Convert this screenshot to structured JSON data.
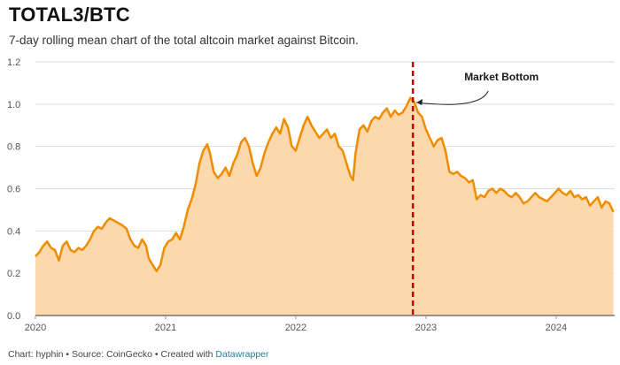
{
  "header": {
    "title": "TOTAL3/BTC",
    "subtitle": "7-day rolling mean chart of the total altcoin market against Bitcoin."
  },
  "footer": {
    "text": "Chart: hyphin • Source: CoinGecko • Created with ",
    "link": "Datawrapper"
  },
  "colors": {
    "line": "#f08c00",
    "area": "#fcd9ad",
    "marker": "#c00000",
    "grid": "#dddddd"
  },
  "chart_data": {
    "type": "area",
    "title": "TOTAL3/BTC",
    "xlabel": "",
    "ylabel": "",
    "xlim": [
      2020.0,
      2024.45
    ],
    "ylim": [
      0,
      1.2
    ],
    "y_ticks": [
      {
        "value": 0,
        "label": "0.0"
      },
      {
        "value": 0.2,
        "label": "0.2"
      },
      {
        "value": 0.4,
        "label": "0.4"
      },
      {
        "value": 0.6,
        "label": "0.6"
      },
      {
        "value": 0.8,
        "label": "0.8"
      },
      {
        "value": 1.0,
        "label": "1.0"
      },
      {
        "value": 1.2,
        "label": "1.2"
      }
    ],
    "x_ticks": [
      {
        "value": 2020,
        "label": "2020"
      },
      {
        "value": 2021,
        "label": "2021"
      },
      {
        "value": 2022,
        "label": "2022"
      },
      {
        "value": 2023,
        "label": "2023"
      },
      {
        "value": 2024,
        "label": "2024"
      }
    ],
    "series": [
      {
        "name": "TOTAL3/BTC (7-day rolling mean)",
        "points": [
          [
            2020.0,
            0.28
          ],
          [
            2020.03,
            0.3
          ],
          [
            2020.06,
            0.33
          ],
          [
            2020.09,
            0.35
          ],
          [
            2020.12,
            0.32
          ],
          [
            2020.15,
            0.31
          ],
          [
            2020.18,
            0.26
          ],
          [
            2020.21,
            0.33
          ],
          [
            2020.24,
            0.35
          ],
          [
            2020.27,
            0.31
          ],
          [
            2020.3,
            0.3
          ],
          [
            2020.33,
            0.32
          ],
          [
            2020.36,
            0.31
          ],
          [
            2020.39,
            0.33
          ],
          [
            2020.42,
            0.36
          ],
          [
            2020.45,
            0.4
          ],
          [
            2020.48,
            0.42
          ],
          [
            2020.51,
            0.41
          ],
          [
            2020.54,
            0.44
          ],
          [
            2020.57,
            0.46
          ],
          [
            2020.6,
            0.45
          ],
          [
            2020.63,
            0.44
          ],
          [
            2020.66,
            0.43
          ],
          [
            2020.7,
            0.41
          ],
          [
            2020.73,
            0.36
          ],
          [
            2020.76,
            0.33
          ],
          [
            2020.79,
            0.32
          ],
          [
            2020.82,
            0.36
          ],
          [
            2020.85,
            0.33
          ],
          [
            2020.87,
            0.27
          ],
          [
            2020.9,
            0.24
          ],
          [
            2020.93,
            0.21
          ],
          [
            2020.96,
            0.24
          ],
          [
            2020.99,
            0.32
          ],
          [
            2021.02,
            0.35
          ],
          [
            2021.05,
            0.36
          ],
          [
            2021.08,
            0.39
          ],
          [
            2021.11,
            0.36
          ],
          [
            2021.14,
            0.42
          ],
          [
            2021.17,
            0.5
          ],
          [
            2021.2,
            0.55
          ],
          [
            2021.23,
            0.62
          ],
          [
            2021.26,
            0.72
          ],
          [
            2021.29,
            0.78
          ],
          [
            2021.32,
            0.81
          ],
          [
            2021.34,
            0.77
          ],
          [
            2021.37,
            0.68
          ],
          [
            2021.4,
            0.65
          ],
          [
            2021.43,
            0.67
          ],
          [
            2021.46,
            0.7
          ],
          [
            2021.49,
            0.66
          ],
          [
            2021.52,
            0.72
          ],
          [
            2021.55,
            0.76
          ],
          [
            2021.58,
            0.82
          ],
          [
            2021.61,
            0.84
          ],
          [
            2021.64,
            0.8
          ],
          [
            2021.67,
            0.72
          ],
          [
            2021.7,
            0.66
          ],
          [
            2021.73,
            0.7
          ],
          [
            2021.76,
            0.77
          ],
          [
            2021.79,
            0.82
          ],
          [
            2021.82,
            0.86
          ],
          [
            2021.85,
            0.89
          ],
          [
            2021.88,
            0.86
          ],
          [
            2021.91,
            0.93
          ],
          [
            2021.94,
            0.89
          ],
          [
            2021.97,
            0.8
          ],
          [
            2022.0,
            0.78
          ],
          [
            2022.03,
            0.84
          ],
          [
            2022.06,
            0.9
          ],
          [
            2022.09,
            0.94
          ],
          [
            2022.12,
            0.9
          ],
          [
            2022.15,
            0.87
          ],
          [
            2022.18,
            0.84
          ],
          [
            2022.21,
            0.86
          ],
          [
            2022.24,
            0.88
          ],
          [
            2022.27,
            0.84
          ],
          [
            2022.3,
            0.86
          ],
          [
            2022.33,
            0.8
          ],
          [
            2022.36,
            0.78
          ],
          [
            2022.39,
            0.72
          ],
          [
            2022.42,
            0.66
          ],
          [
            2022.44,
            0.64
          ],
          [
            2022.46,
            0.77
          ],
          [
            2022.49,
            0.88
          ],
          [
            2022.52,
            0.9
          ],
          [
            2022.55,
            0.87
          ],
          [
            2022.58,
            0.92
          ],
          [
            2022.61,
            0.94
          ],
          [
            2022.64,
            0.93
          ],
          [
            2022.67,
            0.96
          ],
          [
            2022.7,
            0.98
          ],
          [
            2022.73,
            0.94
          ],
          [
            2022.76,
            0.97
          ],
          [
            2022.79,
            0.95
          ],
          [
            2022.82,
            0.96
          ],
          [
            2022.85,
            0.99
          ],
          [
            2022.88,
            1.03
          ],
          [
            2022.91,
            1.01
          ],
          [
            2022.94,
            0.96
          ],
          [
            2022.97,
            0.94
          ],
          [
            2023.0,
            0.88
          ],
          [
            2023.03,
            0.84
          ],
          [
            2023.06,
            0.8
          ],
          [
            2023.09,
            0.83
          ],
          [
            2023.12,
            0.84
          ],
          [
            2023.15,
            0.78
          ],
          [
            2023.18,
            0.68
          ],
          [
            2023.21,
            0.67
          ],
          [
            2023.24,
            0.68
          ],
          [
            2023.27,
            0.66
          ],
          [
            2023.3,
            0.65
          ],
          [
            2023.33,
            0.63
          ],
          [
            2023.36,
            0.64
          ],
          [
            2023.39,
            0.55
          ],
          [
            2023.42,
            0.57
          ],
          [
            2023.45,
            0.56
          ],
          [
            2023.48,
            0.59
          ],
          [
            2023.51,
            0.6
          ],
          [
            2023.54,
            0.58
          ],
          [
            2023.57,
            0.6
          ],
          [
            2023.6,
            0.59
          ],
          [
            2023.63,
            0.57
          ],
          [
            2023.66,
            0.56
          ],
          [
            2023.69,
            0.58
          ],
          [
            2023.72,
            0.56
          ],
          [
            2023.75,
            0.53
          ],
          [
            2023.78,
            0.54
          ],
          [
            2023.81,
            0.56
          ],
          [
            2023.84,
            0.58
          ],
          [
            2023.87,
            0.56
          ],
          [
            2023.9,
            0.55
          ],
          [
            2023.93,
            0.54
          ],
          [
            2023.96,
            0.56
          ],
          [
            2023.99,
            0.58
          ],
          [
            2024.02,
            0.6
          ],
          [
            2024.05,
            0.58
          ],
          [
            2024.08,
            0.57
          ],
          [
            2024.11,
            0.59
          ],
          [
            2024.14,
            0.56
          ],
          [
            2024.17,
            0.57
          ],
          [
            2024.2,
            0.55
          ],
          [
            2024.23,
            0.56
          ],
          [
            2024.26,
            0.52
          ],
          [
            2024.29,
            0.54
          ],
          [
            2024.32,
            0.56
          ],
          [
            2024.35,
            0.51
          ],
          [
            2024.38,
            0.54
          ],
          [
            2024.41,
            0.53
          ],
          [
            2024.44,
            0.49
          ]
        ]
      }
    ],
    "annotations": [
      {
        "type": "vline",
        "x": 2022.9,
        "label": "Market Bottom",
        "arrow_to_y": 1.02
      }
    ]
  }
}
